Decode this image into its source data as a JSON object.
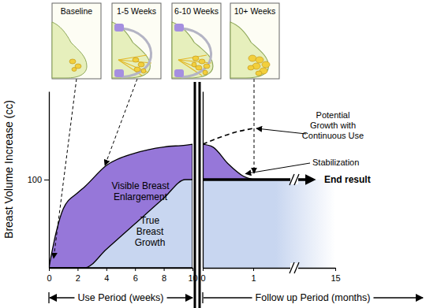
{
  "chart_data": [
    {
      "type": "area",
      "x_label": "Use Period (weeks)",
      "y_label": "Breast Volume Increase (cc)",
      "x": [
        0,
        0.5,
        1,
        2,
        2.5,
        4,
        6,
        8,
        9.5,
        10
      ],
      "xlim": [
        0,
        10
      ],
      "xticks": [
        0,
        2,
        4,
        6,
        8,
        10
      ],
      "ylim": [
        0,
        200
      ],
      "yticks": [
        100
      ],
      "series": [
        {
          "name": "Visible Breast Enlargement",
          "color": "#9677d9",
          "values": [
            0,
            40,
            67,
            85,
            92,
            116,
            130,
            137,
            139,
            140
          ]
        },
        {
          "name": "True Breast Growth",
          "color": "#c8d6f0",
          "values": [
            0,
            0,
            0,
            0,
            0,
            21,
            50,
            79,
            100,
            100
          ]
        }
      ]
    },
    {
      "type": "area",
      "x_label": "Follow up Period (months)",
      "xlim": [
        0,
        15
      ],
      "xticks": [
        0,
        1,
        15
      ],
      "ylim": [
        0,
        200
      ],
      "yticks": [],
      "tick_labels": "x",
      "series": [
        {
          "color": "#9677d9",
          "x": [
            0,
            0.2,
            0.5,
            0.8,
            1
          ],
          "values": [
            140,
            137,
            118,
            104,
            100
          ]
        },
        {
          "color": "#c8d6f0",
          "x": [
            0,
            1,
            15
          ],
          "values": [
            100,
            100,
            100
          ]
        },
        {
          "name": "Potential Growth with Continuous Use",
          "type": "line",
          "line_style": "dashed",
          "color": "#000000",
          "x": [
            0,
            0.3,
            0.6,
            1
          ],
          "values": [
            140,
            147,
            153,
            158
          ]
        }
      ],
      "annotations": [
        {
          "text": "Stabilization",
          "x": 0.8,
          "y": 104
        },
        {
          "text": "End result",
          "y": 100
        }
      ]
    }
  ],
  "illustrations": [
    "Baseline",
    "1-5 Weeks",
    "6-10 Weeks",
    "10+ Weeks"
  ]
}
